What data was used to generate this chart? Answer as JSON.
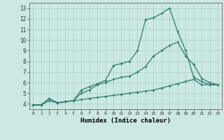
{
  "xlabel": "Humidex (Indice chaleur)",
  "xlim": [
    -0.5,
    23.5
  ],
  "ylim": [
    3.5,
    13.5
  ],
  "xticks": [
    0,
    1,
    2,
    3,
    4,
    5,
    6,
    7,
    8,
    9,
    10,
    11,
    12,
    13,
    14,
    15,
    16,
    17,
    18,
    19,
    20,
    21,
    22,
    23
  ],
  "yticks": [
    4,
    5,
    6,
    7,
    8,
    9,
    10,
    11,
    12,
    13
  ],
  "background_color": "#cbe8e5",
  "grid_color": "#aacfcc",
  "line_color": "#2e7d6e",
  "line1_x": [
    0,
    1,
    2,
    3,
    4,
    5,
    6,
    7,
    8,
    9,
    10,
    11,
    12,
    13,
    14,
    15,
    16,
    17,
    18,
    19,
    20,
    21,
    22,
    23
  ],
  "line1_y": [
    3.9,
    3.9,
    4.5,
    4.1,
    4.2,
    4.3,
    5.3,
    5.6,
    5.9,
    6.2,
    7.6,
    7.8,
    8.0,
    9.0,
    11.9,
    12.1,
    12.5,
    13.0,
    10.8,
    9.0,
    6.5,
    6.1,
    5.8,
    5.8
  ],
  "line2_x": [
    0,
    1,
    2,
    3,
    4,
    5,
    6,
    7,
    8,
    9,
    10,
    11,
    12,
    13,
    14,
    15,
    16,
    17,
    18,
    19,
    20,
    21,
    22,
    23
  ],
  "line2_y": [
    3.9,
    3.9,
    4.5,
    4.1,
    4.2,
    4.3,
    5.0,
    5.3,
    5.8,
    6.0,
    6.3,
    6.5,
    6.6,
    7.0,
    7.5,
    8.5,
    9.0,
    9.5,
    9.8,
    8.5,
    7.7,
    6.4,
    6.0,
    5.8
  ],
  "line3_x": [
    0,
    1,
    2,
    3,
    4,
    5,
    6,
    7,
    8,
    9,
    10,
    11,
    12,
    13,
    14,
    15,
    16,
    17,
    18,
    19,
    20,
    21,
    22,
    23
  ],
  "line3_y": [
    3.9,
    3.9,
    4.3,
    4.1,
    4.2,
    4.3,
    4.4,
    4.5,
    4.6,
    4.7,
    4.8,
    4.9,
    5.0,
    5.1,
    5.2,
    5.3,
    5.5,
    5.7,
    5.9,
    6.1,
    6.3,
    5.8,
    5.8,
    5.8
  ]
}
